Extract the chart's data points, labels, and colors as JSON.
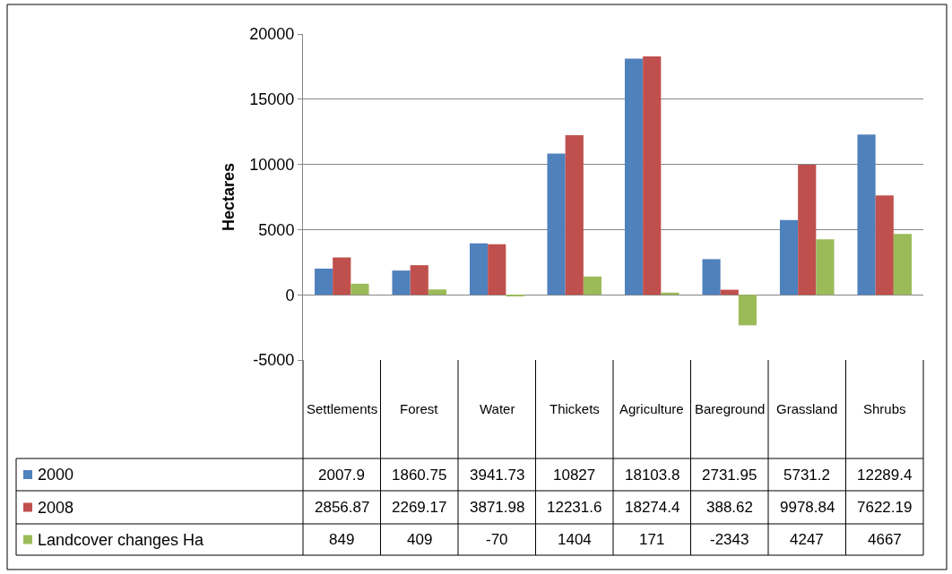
{
  "chart_data": {
    "type": "bar",
    "ylabel": "Hectares",
    "categories": [
      "Settlements",
      "Forest",
      "Water",
      "Thickets",
      "Agriculture",
      "Bareground",
      "Grassland",
      "Shrubs"
    ],
    "series": [
      {
        "name": "2000",
        "color": "#4f81bd",
        "values": [
          2007.9,
          1860.75,
          3941.73,
          10827,
          18103.8,
          2731.95,
          5731.2,
          12289.4
        ],
        "value_labels": [
          "2007.9",
          "1860.75",
          "3941.73",
          "10827",
          "18103.8",
          "2731.95",
          "5731.2",
          "12289.4"
        ]
      },
      {
        "name": "2008",
        "color": "#c0504d",
        "values": [
          2856.87,
          2269.17,
          3871.98,
          12231.6,
          18274.4,
          388.62,
          9978.84,
          7622.19
        ],
        "value_labels": [
          "2856.87",
          "2269.17",
          "3871.98",
          "12231.6",
          "18274.4",
          "388.62",
          "9978.84",
          "7622.19"
        ]
      },
      {
        "name": "Landcover changes Ha",
        "color": "#9bbb59",
        "values": [
          849,
          409,
          -70,
          1404,
          171,
          -2343,
          4247,
          4667
        ],
        "value_labels": [
          "849",
          "409",
          "-70",
          "1404",
          "171",
          "-2343",
          "4247",
          "4667"
        ]
      }
    ],
    "ylim": [
      -5000,
      20000
    ],
    "yticks": [
      -5000,
      0,
      5000,
      10000,
      15000,
      20000
    ],
    "grid": "y",
    "legend": "bottom"
  }
}
